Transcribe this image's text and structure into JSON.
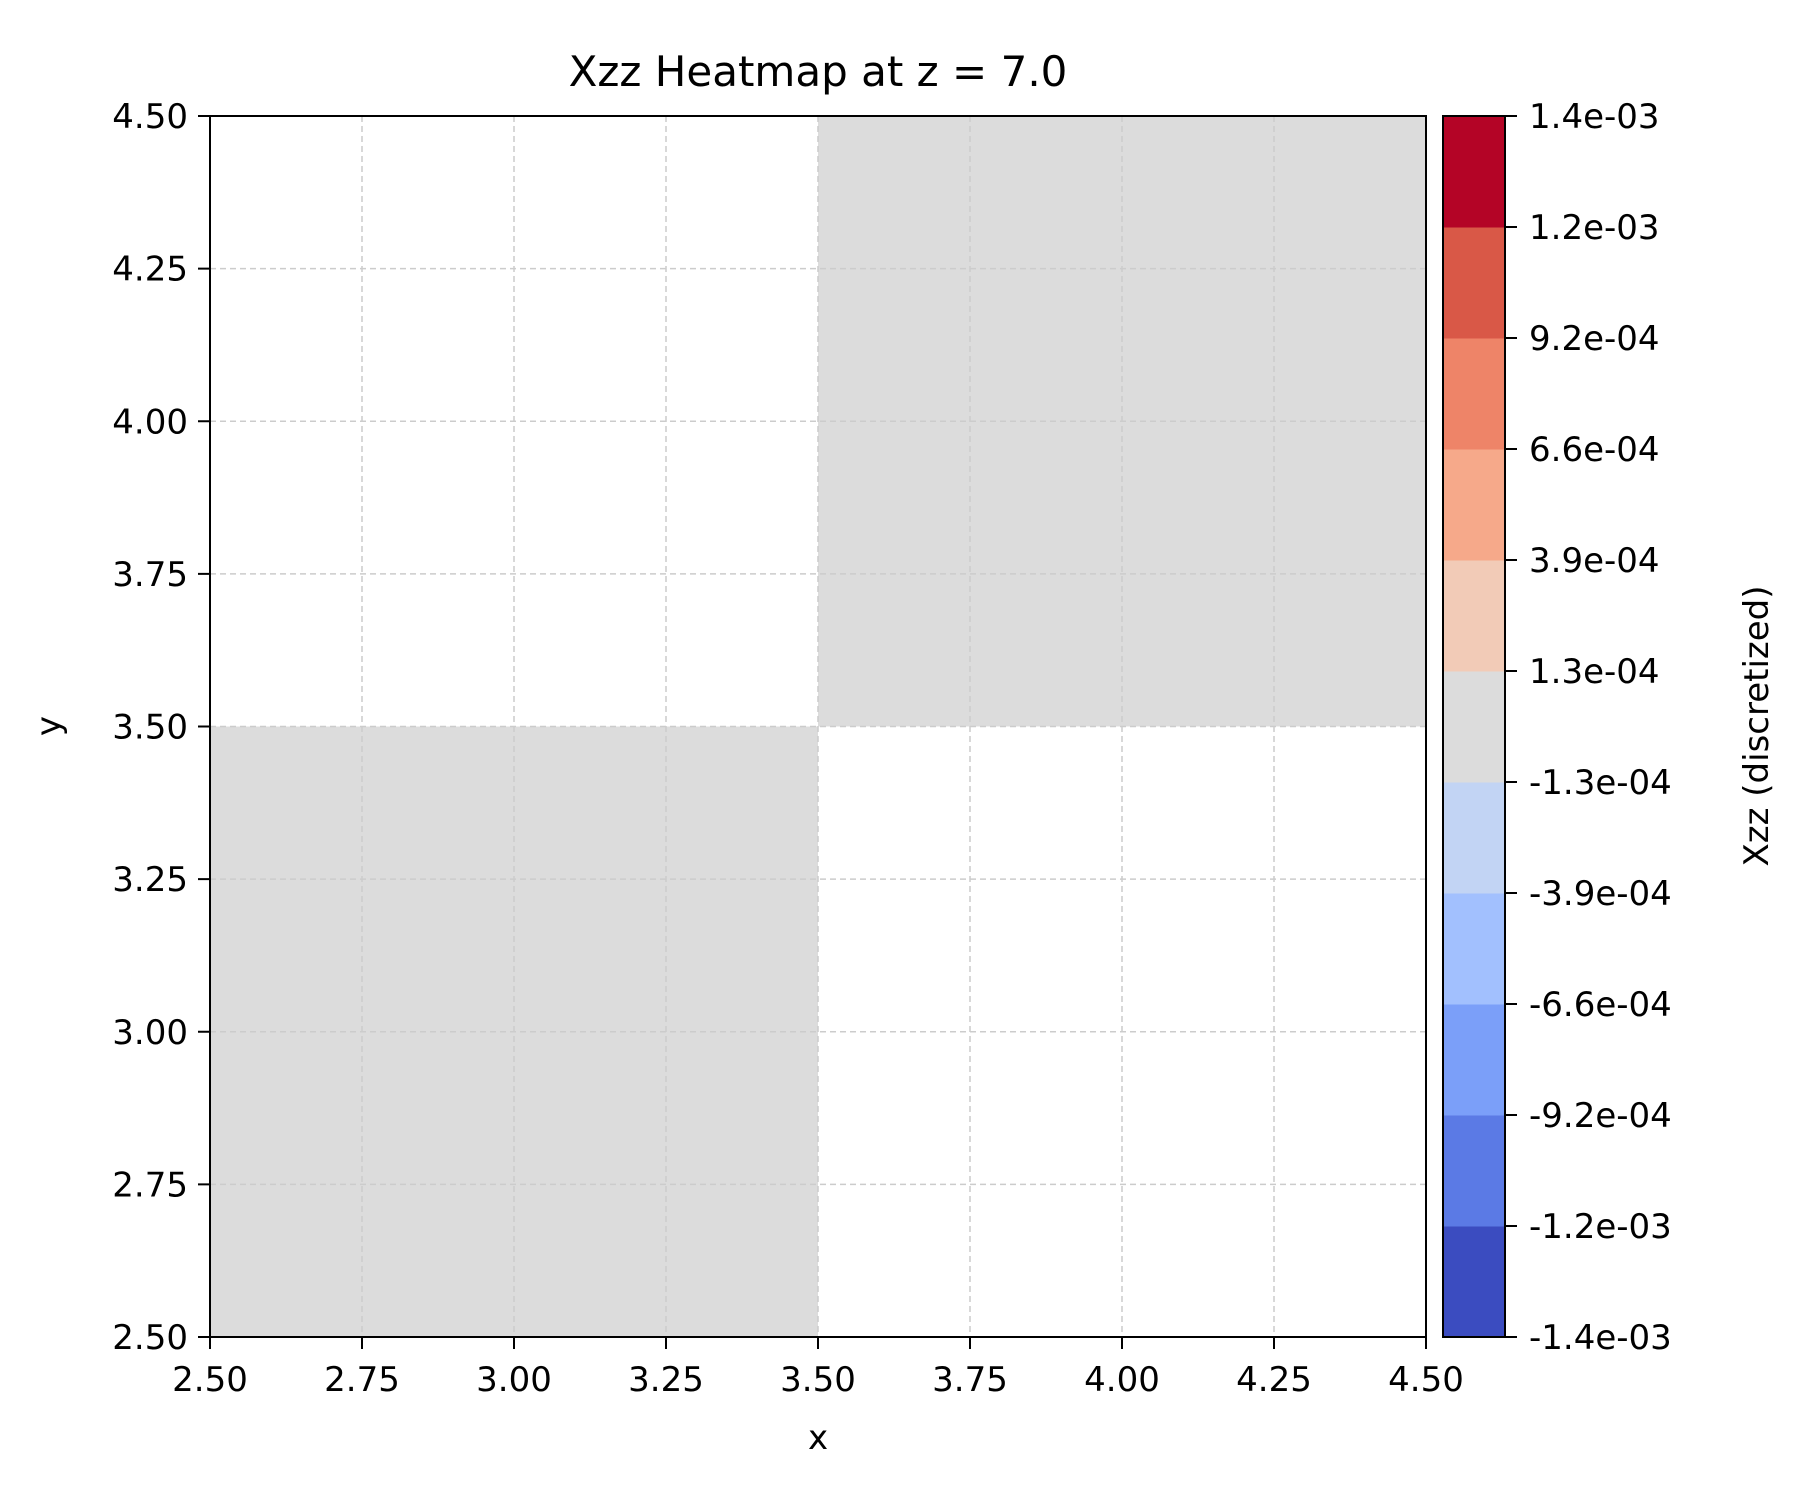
{
  "chart_data": {
    "type": "heatmap",
    "title": "Xzz Heatmap at z = 7.0",
    "xlabel": "x",
    "ylabel": "y",
    "xlim": [
      2.5,
      4.5
    ],
    "ylim": [
      2.5,
      4.5
    ],
    "xticks": [
      "2.50",
      "2.75",
      "3.00",
      "3.25",
      "3.50",
      "3.75",
      "4.00",
      "4.25",
      "4.50"
    ],
    "yticks": [
      "2.50",
      "2.75",
      "3.00",
      "3.25",
      "3.50",
      "3.75",
      "4.00",
      "4.25",
      "4.50"
    ],
    "grid": true,
    "cells": [
      {
        "x0": 2.5,
        "x1": 3.5,
        "y0": 2.5,
        "y1": 3.5,
        "value": 0.0
      },
      {
        "x0": 3.5,
        "x1": 4.5,
        "y0": 3.5,
        "y1": 4.5,
        "value": 0.0
      }
    ],
    "colorbar": {
      "label": "Xzz (discretized)",
      "boundaries": [
        -0.0014,
        -0.0012,
        -0.00092,
        -0.00066,
        -0.00039,
        -0.00013,
        0.00013,
        0.00039,
        0.00066,
        0.00092,
        0.0012,
        0.0014
      ],
      "tick_labels": [
        "-1.4e-03",
        "-1.2e-03",
        "-9.2e-04",
        "-6.6e-04",
        "-3.9e-04",
        "-1.3e-04",
        "1.3e-04",
        "3.9e-04",
        "6.6e-04",
        "9.2e-04",
        "1.2e-03",
        "1.4e-03"
      ],
      "colors": [
        "#3b4cc0",
        "#5b7ae5",
        "#7b9ff9",
        "#a2c0fe",
        "#c2d4f4",
        "#dcdcdc",
        "#f2cbb7",
        "#f6a98a",
        "#ee8468",
        "#d95847",
        "#b40426"
      ]
    },
    "colors": {
      "background": "#ffffff",
      "grid": "#cccccc",
      "axis": "#000000"
    }
  }
}
